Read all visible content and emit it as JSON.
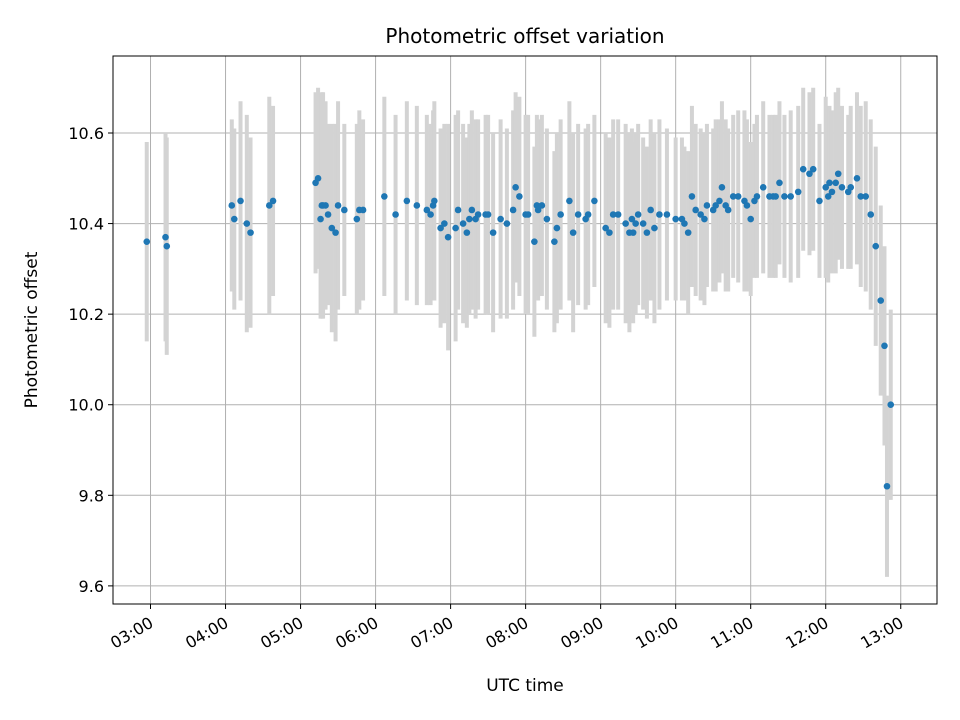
{
  "chart_data": {
    "type": "scatter",
    "title": "Photometric offset variation",
    "xlabel": "UTC time",
    "ylabel": "Photometric offset",
    "x_ticks": [
      "03:00",
      "04:00",
      "05:00",
      "06:00",
      "07:00",
      "08:00",
      "09:00",
      "10:00",
      "11:00",
      "12:00",
      "13:00"
    ],
    "y_ticks": [
      "9.6",
      "9.8",
      "10.0",
      "10.2",
      "10.4",
      "10.6"
    ],
    "xlim": [
      "02:30",
      "13:29"
    ],
    "ylim": [
      9.56,
      10.77
    ],
    "grid": true,
    "colors": {
      "points": "#1f77b4",
      "error_bars": "#d3d3d3",
      "grid": "#b0b0b0"
    },
    "series": [
      {
        "x": [
          "02:57",
          "03:12",
          "03:13",
          "04:05",
          "04:07",
          "04:12",
          "04:17",
          "04:20",
          "04:35",
          "04:38",
          "05:12",
          "05:14",
          "05:16",
          "05:17",
          "05:18",
          "05:20",
          "05:22",
          "05:25",
          "05:28",
          "05:30",
          "05:35",
          "05:45",
          "05:47",
          "05:50",
          "06:07",
          "06:16",
          "06:25",
          "06:33",
          "06:41",
          "06:44",
          "06:46",
          "06:47",
          "06:52",
          "06:55",
          "06:58",
          "07:04",
          "07:06",
          "07:10",
          "07:13",
          "07:15",
          "07:17",
          "07:20",
          "07:22",
          "07:28",
          "07:30",
          "07:34",
          "07:40",
          "07:45",
          "07:50",
          "07:52",
          "07:55",
          "08:00",
          "08:02",
          "08:07",
          "08:09",
          "08:10",
          "08:13",
          "08:17",
          "08:23",
          "08:25",
          "08:28",
          "08:35",
          "08:38",
          "08:42",
          "08:48",
          "08:50",
          "08:55",
          "09:04",
          "09:07",
          "09:10",
          "09:14",
          "09:20",
          "09:23",
          "09:25",
          "09:26",
          "09:28",
          "09:30",
          "09:34",
          "09:37",
          "09:40",
          "09:43",
          "09:47",
          "09:53",
          "10:00",
          "10:05",
          "10:07",
          "10:10",
          "10:13",
          "10:16",
          "10:20",
          "10:23",
          "10:25",
          "10:30",
          "10:32",
          "10:35",
          "10:37",
          "10:40",
          "10:42",
          "10:46",
          "10:50",
          "10:55",
          "10:57",
          "11:00",
          "11:03",
          "11:05",
          "11:10",
          "11:15",
          "11:18",
          "11:20",
          "11:23",
          "11:27",
          "11:32",
          "11:38",
          "11:42",
          "11:47",
          "11:50",
          "11:55",
          "12:00",
          "12:02",
          "12:03",
          "12:05",
          "12:08",
          "12:10",
          "12:13",
          "12:18",
          "12:20",
          "12:25",
          "12:28",
          "12:32",
          "12:36",
          "12:40",
          "12:44",
          "12:47",
          "12:49",
          "12:52"
        ],
        "y": [
          10.36,
          10.37,
          10.35,
          10.44,
          10.41,
          10.45,
          10.4,
          10.38,
          10.44,
          10.45,
          10.49,
          10.5,
          10.41,
          10.44,
          10.44,
          10.44,
          10.42,
          10.39,
          10.38,
          10.44,
          10.43,
          10.41,
          10.43,
          10.43,
          10.46,
          10.42,
          10.45,
          10.44,
          10.43,
          10.42,
          10.44,
          10.45,
          10.39,
          10.4,
          10.37,
          10.39,
          10.43,
          10.4,
          10.38,
          10.41,
          10.43,
          10.41,
          10.42,
          10.42,
          10.42,
          10.38,
          10.41,
          10.4,
          10.43,
          10.48,
          10.46,
          10.42,
          10.42,
          10.36,
          10.44,
          10.43,
          10.44,
          10.41,
          10.36,
          10.39,
          10.42,
          10.45,
          10.38,
          10.42,
          10.41,
          10.42,
          10.45,
          10.39,
          10.38,
          10.42,
          10.42,
          10.4,
          10.38,
          10.41,
          10.38,
          10.4,
          10.42,
          10.4,
          10.38,
          10.43,
          10.39,
          10.42,
          10.42,
          10.41,
          10.41,
          10.4,
          10.38,
          10.46,
          10.43,
          10.42,
          10.41,
          10.44,
          10.43,
          10.44,
          10.45,
          10.48,
          10.44,
          10.43,
          10.46,
          10.46,
          10.45,
          10.44,
          10.41,
          10.45,
          10.46,
          10.48,
          10.46,
          10.46,
          10.46,
          10.49,
          10.46,
          10.46,
          10.47,
          10.52,
          10.51,
          10.52,
          10.45,
          10.48,
          10.46,
          10.49,
          10.47,
          10.49,
          10.51,
          10.48,
          10.47,
          10.48,
          10.5,
          10.46,
          10.46,
          10.42,
          10.35,
          10.23,
          10.13,
          9.82,
          10.0
        ],
        "yerr": [
          0.22,
          0.23,
          0.24,
          0.19,
          0.2,
          0.22,
          0.24,
          0.21,
          0.24,
          0.21,
          0.2,
          0.2,
          0.22,
          0.25,
          0.25,
          0.23,
          0.2,
          0.23,
          0.24,
          0.23,
          0.19,
          0.21,
          0.22,
          0.2,
          0.22,
          0.22,
          0.22,
          0.22,
          0.21,
          0.2,
          0.21,
          0.22,
          0.22,
          0.22,
          0.25,
          0.25,
          0.22,
          0.22,
          0.21,
          0.21,
          0.22,
          0.22,
          0.21,
          0.22,
          0.22,
          0.22,
          0.22,
          0.21,
          0.22,
          0.21,
          0.22,
          0.22,
          0.22,
          0.21,
          0.2,
          0.2,
          0.2,
          0.2,
          0.2,
          0.21,
          0.21,
          0.22,
          0.22,
          0.2,
          0.2,
          0.2,
          0.19,
          0.21,
          0.21,
          0.21,
          0.21,
          0.22,
          0.22,
          0.2,
          0.2,
          0.2,
          0.2,
          0.19,
          0.19,
          0.2,
          0.21,
          0.21,
          0.19,
          0.18,
          0.18,
          0.17,
          0.18,
          0.2,
          0.19,
          0.19,
          0.19,
          0.18,
          0.18,
          0.19,
          0.18,
          0.19,
          0.19,
          0.18,
          0.18,
          0.19,
          0.2,
          0.19,
          0.17,
          0.17,
          0.18,
          0.19,
          0.18,
          0.18,
          0.18,
          0.18,
          0.18,
          0.19,
          0.19,
          0.18,
          0.18,
          0.18,
          0.17,
          0.2,
          0.19,
          0.17,
          0.18,
          0.2,
          0.19,
          0.18,
          0.17,
          0.18,
          0.19,
          0.2,
          0.21,
          0.21,
          0.22,
          0.21,
          0.22,
          0.2,
          0.21
        ]
      }
    ]
  }
}
